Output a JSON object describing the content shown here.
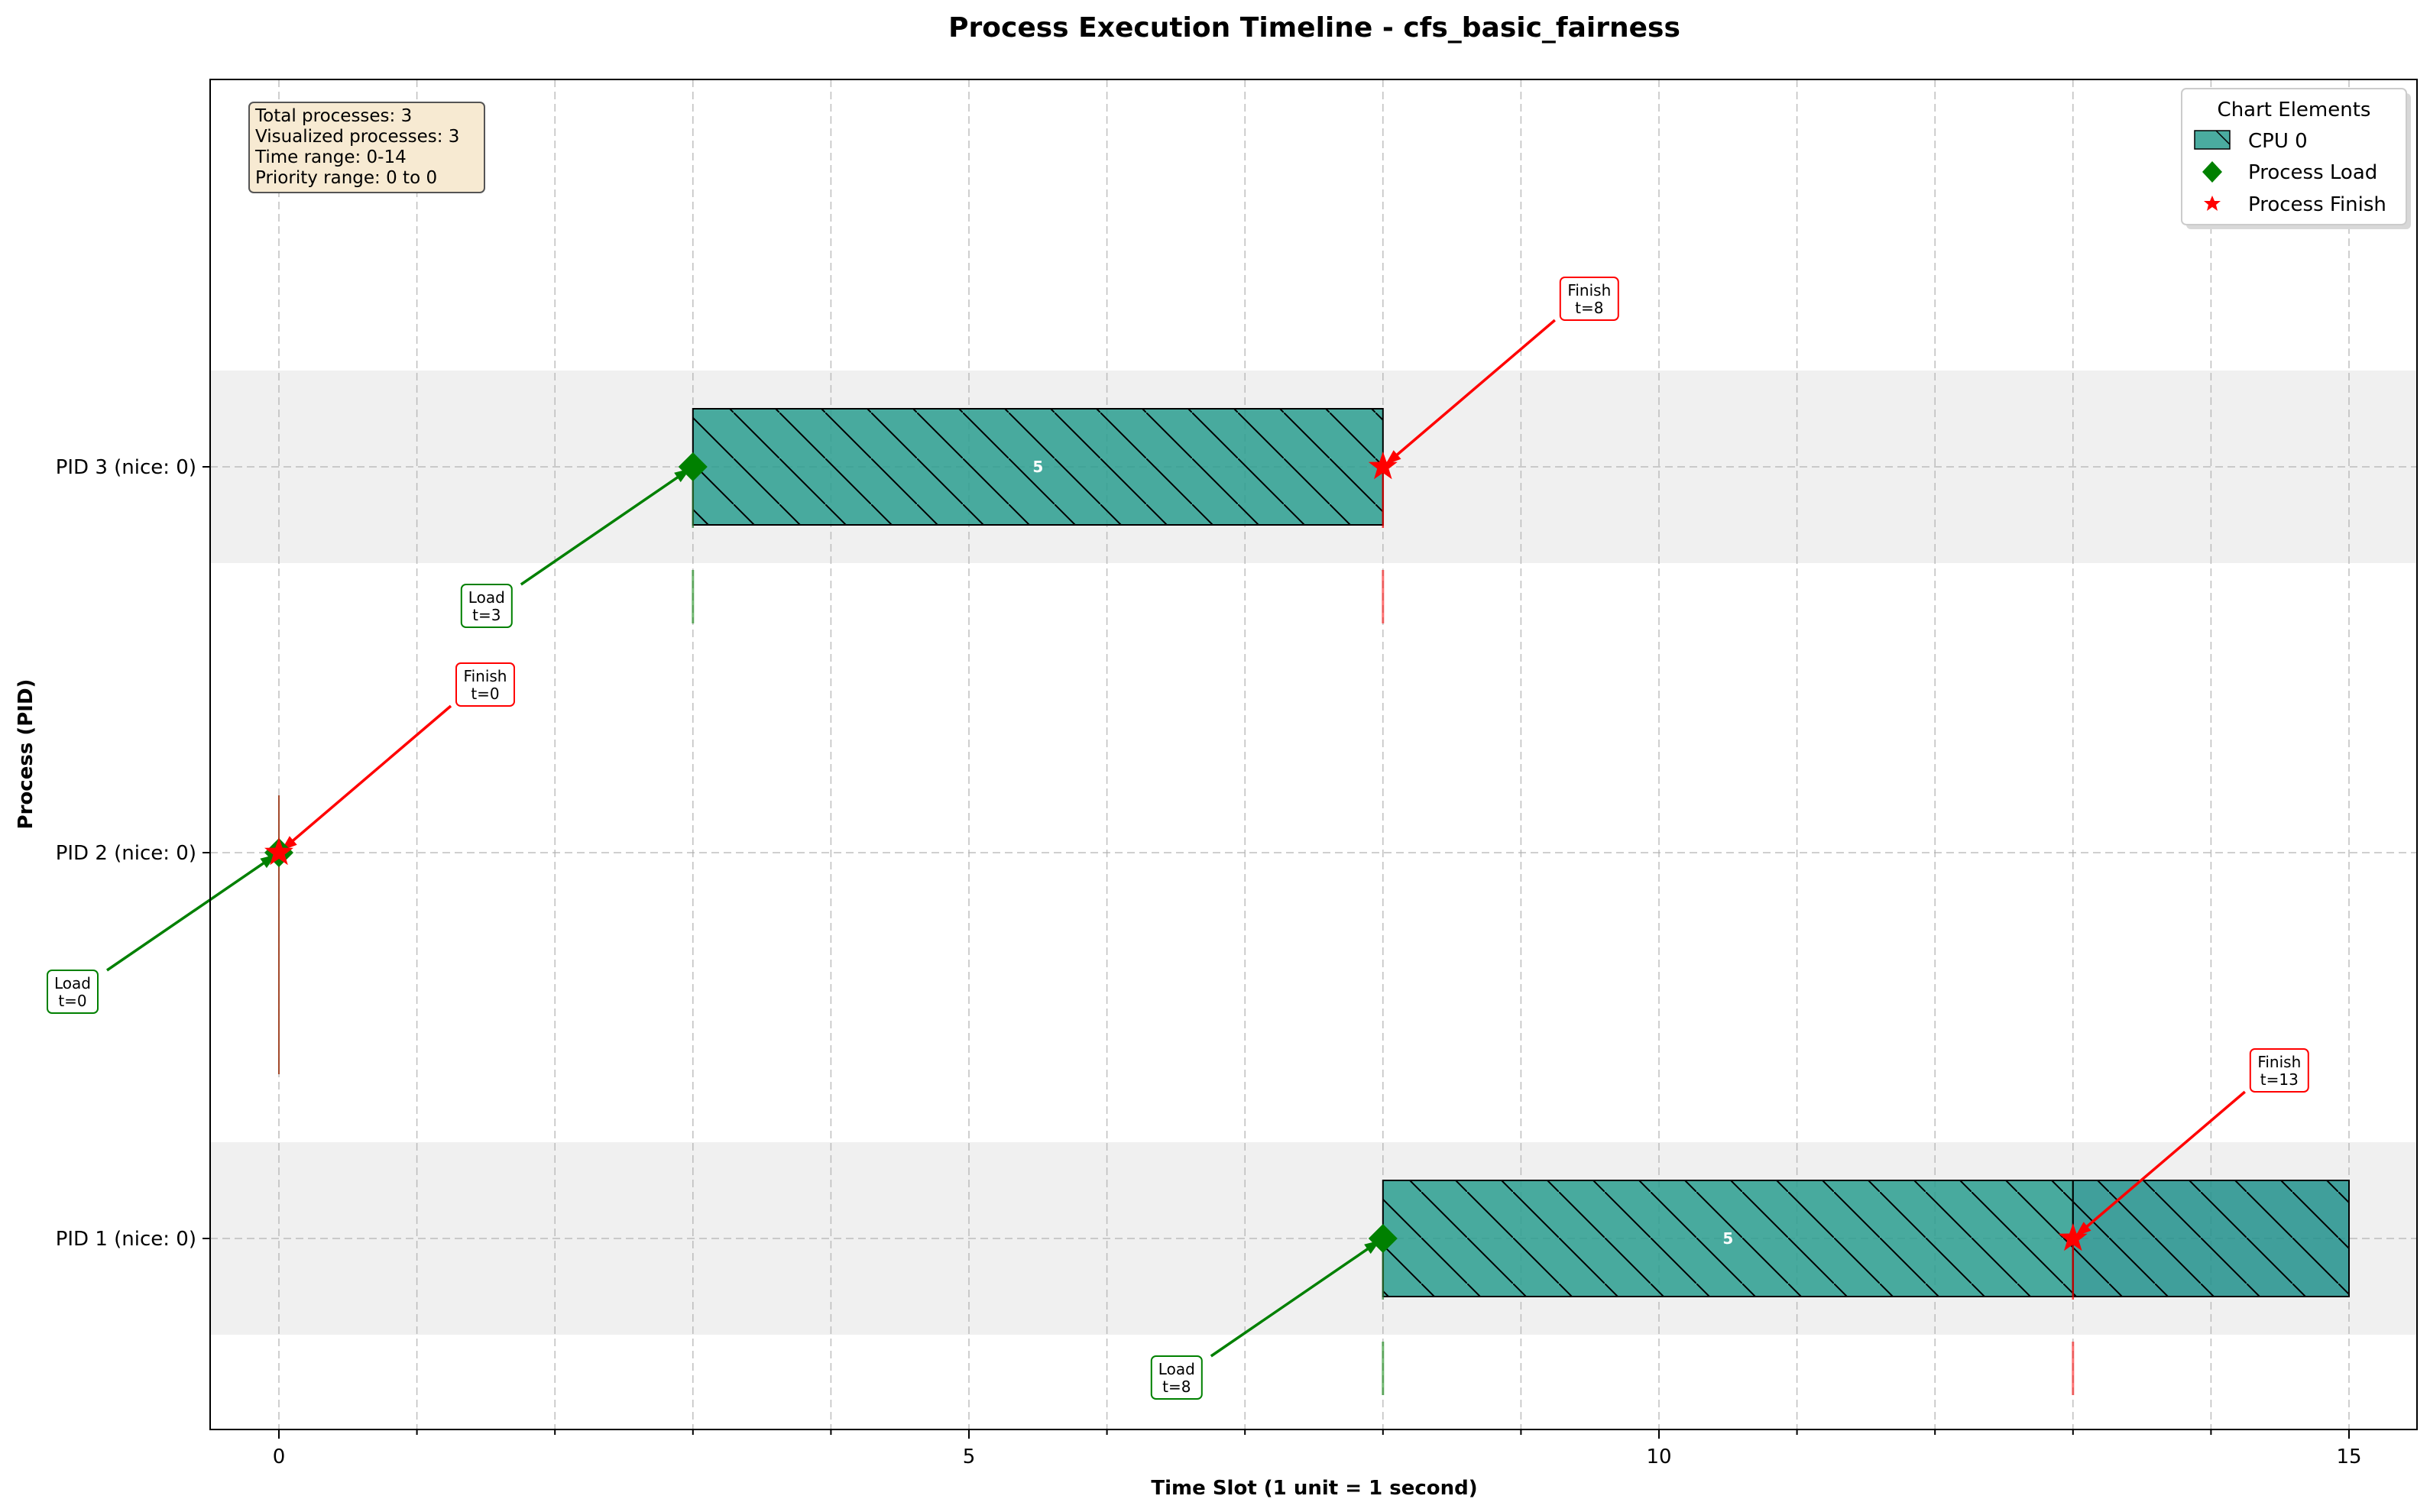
{
  "chart_data": {
    "type": "gantt",
    "title": "Process Execution Timeline - cfs_basic_fairness",
    "xlabel": "Time Slot (1 unit = 1 second)",
    "ylabel": "Process (PID)",
    "xlim": [
      -1,
      15
    ],
    "x_ticks": [
      0,
      5,
      10,
      15
    ],
    "grid": true,
    "processes": [
      {
        "label": "PID 1 (nice: 0)",
        "row": 0
      },
      {
        "label": "PID 2 (nice: 0)",
        "row": 1
      },
      {
        "label": "PID 3 (nice: 0)",
        "row": 2
      }
    ],
    "bars": [
      {
        "row": 2,
        "start": 3,
        "end": 8,
        "label": "5",
        "cpu": "CPU 0"
      },
      {
        "row": 0,
        "start": 8,
        "end": 13,
        "label": "5",
        "cpu": "CPU 0"
      },
      {
        "row": 0,
        "start": 13,
        "end": 15,
        "label": "",
        "cpu": "CPU 0"
      }
    ],
    "events": [
      {
        "type": "load",
        "row": 2,
        "t": 3,
        "line1": "Load",
        "line2": "t=3"
      },
      {
        "type": "finish",
        "row": 2,
        "t": 8,
        "line1": "Finish",
        "line2": "t=8"
      },
      {
        "type": "load",
        "row": 1,
        "t": 0,
        "line1": "Load",
        "line2": "t=0"
      },
      {
        "type": "finish",
        "row": 1,
        "t": 0,
        "line1": "Finish",
        "line2": "t=0"
      },
      {
        "type": "load",
        "row": 0,
        "t": 8,
        "line1": "Load",
        "line2": "t=8"
      },
      {
        "type": "finish",
        "row": 0,
        "t": 13,
        "line1": "Finish",
        "line2": "t=13"
      }
    ],
    "info_box": [
      "Total processes: 3",
      "Visualized processes: 3",
      "Time range: 0-14",
      "Priority range: 0 to 0"
    ],
    "legend": {
      "title": "Chart Elements",
      "placement": "top-right",
      "entries": [
        "CPU 0",
        "Process Load",
        "Process Finish"
      ]
    },
    "colors": {
      "bar": "#2a9d8f",
      "bar_dark": "#21918c",
      "load": "#008000",
      "finish": "#ff0000",
      "row_band": "#f0f0f0"
    }
  }
}
